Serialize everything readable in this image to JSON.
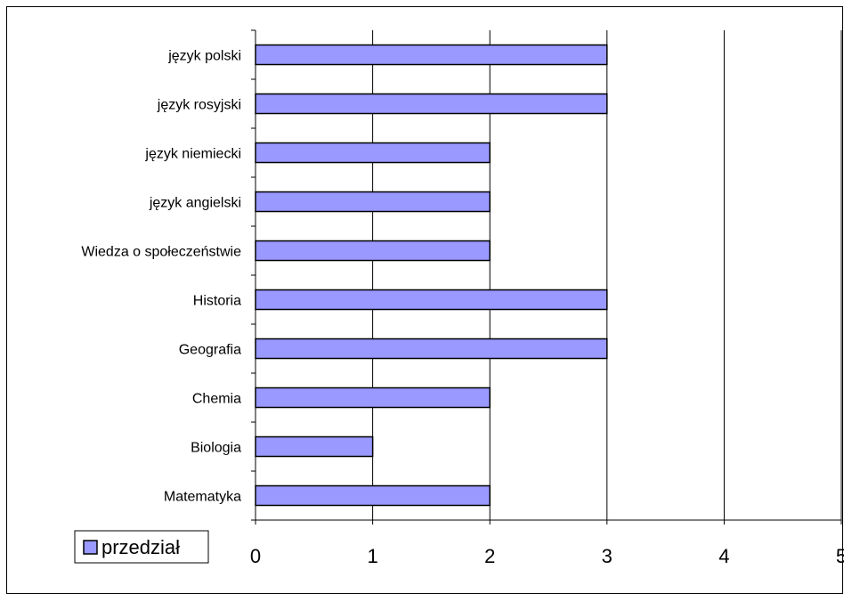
{
  "chart_data": {
    "type": "bar",
    "orientation": "horizontal",
    "categories": [
      "język polski",
      "język rosyjski",
      "język niemiecki",
      "język angielski",
      "Wiedza o społeczeństwie",
      "Historia",
      "Geografia",
      "Chemia",
      "Biologia",
      "Matematyka"
    ],
    "series": [
      {
        "name": "przedział",
        "values": [
          3,
          3,
          2,
          2,
          2,
          3,
          3,
          2,
          1,
          2
        ],
        "color": "#9999ff"
      }
    ],
    "xticks": [
      "0",
      "1",
      "2",
      "3",
      "4",
      "5"
    ],
    "xlim": [
      0,
      5
    ],
    "grid": true,
    "legend_position": "bottom-left"
  }
}
